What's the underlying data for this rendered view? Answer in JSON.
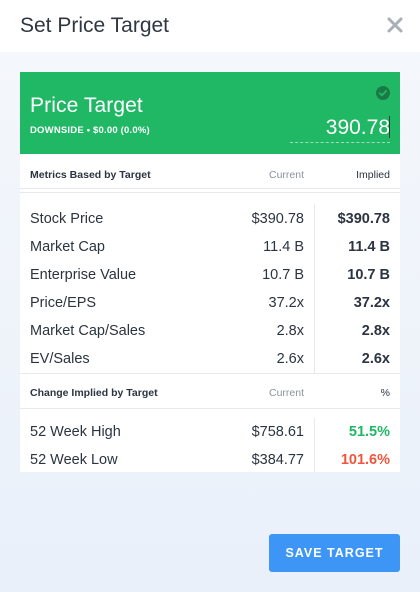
{
  "modal": {
    "title": "Set Price Target",
    "close_icon": "close-icon"
  },
  "price_target": {
    "title": "Price Target",
    "subtitle": "DOWNSIDE • $0.00 (0.0%)",
    "value": "390.78",
    "header_color": "#21b865",
    "check_icon": "check-circle-icon"
  },
  "metrics": {
    "header": {
      "label": "Metrics Based by Target",
      "current": "Current",
      "implied": "Implied"
    },
    "rows": [
      {
        "name": "Stock Price",
        "current": "$390.78",
        "implied": "$390.78"
      },
      {
        "name": "Market Cap",
        "current": "11.4 B",
        "implied": "11.4 B"
      },
      {
        "name": "Enterprise Value",
        "current": "10.7 B",
        "implied": "10.7 B"
      },
      {
        "name": "Price/EPS",
        "current": "37.2x",
        "implied": "37.2x"
      },
      {
        "name": "Market Cap/Sales",
        "current": "2.8x",
        "implied": "2.8x"
      },
      {
        "name": "EV/Sales",
        "current": "2.6x",
        "implied": "2.6x"
      }
    ]
  },
  "change": {
    "header": {
      "label": "Change Implied by Target",
      "current": "Current",
      "pct": "%"
    },
    "rows": [
      {
        "name": "52 Week High",
        "current": "$758.61",
        "pct": "51.5%",
        "color": "#21b865"
      },
      {
        "name": "52 Week Low",
        "current": "$384.77",
        "pct": "101.6%",
        "color": "#f2553b"
      }
    ]
  },
  "save_button": {
    "label": "SAVE TARGET",
    "color": "#3d95f6"
  }
}
